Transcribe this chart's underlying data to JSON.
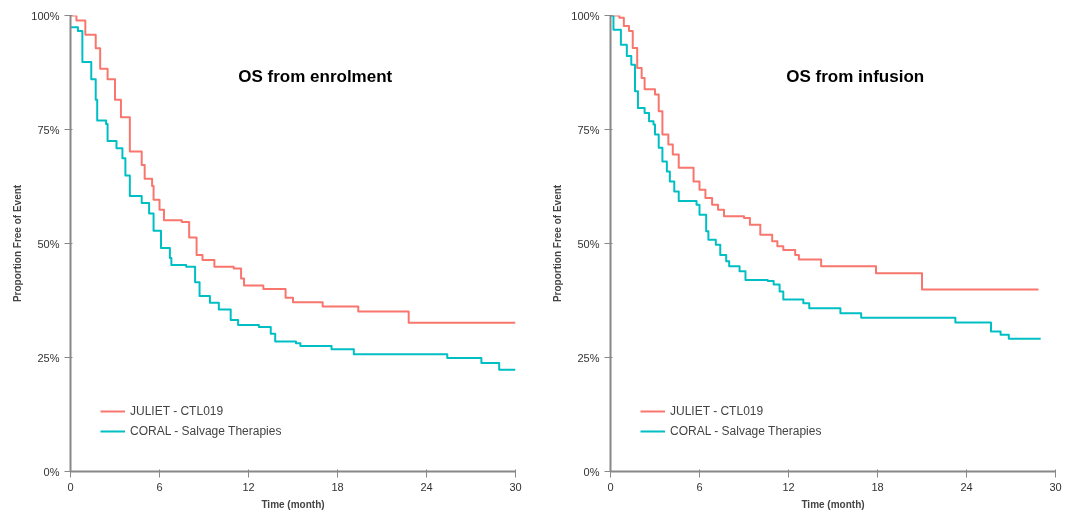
{
  "chart_data": [
    {
      "type": "step",
      "title": "OS from enrolment",
      "xlabel": "Time (month)",
      "ylabel": "Proportion Free of Event",
      "xlim": [
        0,
        30
      ],
      "xticks": [
        0,
        6,
        12,
        18,
        24,
        30
      ],
      "ylim": [
        0,
        100
      ],
      "yticks": [
        {
          "value": 0,
          "label": "0%"
        },
        {
          "value": 25,
          "label": "25%"
        },
        {
          "value": 50,
          "label": "50%"
        },
        {
          "value": 75,
          "label": "75%"
        },
        {
          "value": 100,
          "label": "100%"
        }
      ],
      "grid": false,
      "legend": "bottom left",
      "series": [
        {
          "name": "JULIET - CTL019",
          "color": "#f8766d",
          "x": [
            0,
            0.4,
            1,
            1.7,
            2,
            2.5,
            3,
            3.4,
            4,
            4.8,
            5,
            5.5,
            5.6,
            6,
            6.3,
            7.5,
            8,
            8.5,
            8.9,
            9.7,
            11,
            11.5,
            11.7,
            13,
            14.5,
            15,
            17,
            19.4,
            22.8,
            30
          ],
          "values": [
            100,
            98.9,
            95.8,
            92.8,
            88.3,
            86,
            81.5,
            77.7,
            70.2,
            67.2,
            64.2,
            62.6,
            59.6,
            57.4,
            55.1,
            54.7,
            51.3,
            47.5,
            46.4,
            44.9,
            44.5,
            42.3,
            40.8,
            40,
            38.1,
            37.1,
            36.2,
            35.1,
            32.6,
            32.6
          ]
        },
        {
          "name": "CORAL - Salvage Therapies",
          "color": "#00bfc4",
          "x": [
            0,
            0.5,
            0.8,
            1.4,
            1.7,
            1.8,
            2.4,
            2.5,
            3.1,
            3.5,
            3.7,
            4,
            4.8,
            5.3,
            5.6,
            6.1,
            6.7,
            6.8,
            7.8,
            8.4,
            8.7,
            9.4,
            10,
            10.8,
            11.3,
            12.7,
            13.5,
            13.8,
            15.2,
            15.5,
            17.6,
            19.1,
            25.4,
            27.7,
            28.9,
            30
          ],
          "values": [
            97.4,
            96.6,
            89.8,
            86,
            81.5,
            77,
            76.2,
            72.5,
            70.9,
            68.7,
            64.9,
            60.4,
            58.9,
            56.6,
            52.8,
            49,
            46.8,
            45.3,
            44.9,
            41.5,
            38.5,
            37,
            35.5,
            33.2,
            32.1,
            31.7,
            30.2,
            28.5,
            28.1,
            27.5,
            26.8,
            25.7,
            24.9,
            23.8,
            22.3,
            22.3
          ]
        }
      ]
    },
    {
      "type": "step",
      "title": "OS from infusion",
      "xlabel": "Time (month)",
      "ylabel": "Proportion Free of Event",
      "xlim": [
        0,
        30
      ],
      "xticks": [
        0,
        6,
        12,
        18,
        24,
        30
      ],
      "ylim": [
        0,
        100
      ],
      "yticks": [
        {
          "value": 0,
          "label": "0%"
        },
        {
          "value": 25,
          "label": "25%"
        },
        {
          "value": 50,
          "label": "50%"
        },
        {
          "value": 75,
          "label": "75%"
        },
        {
          "value": 100,
          "label": "100%"
        }
      ],
      "grid": false,
      "legend": "bottom left",
      "series": [
        {
          "name": "JULIET - CTL019",
          "color": "#f8766d",
          "x": [
            0,
            0.6,
            0.9,
            1.25,
            1.5,
            1.8,
            2.1,
            2.3,
            3,
            3.25,
            3.5,
            3.9,
            4.2,
            4.6,
            5.6,
            6,
            6.4,
            6.85,
            7.25,
            7.65,
            9,
            9.4,
            10.1,
            10.9,
            11.25,
            11.65,
            12.45,
            12.7,
            14.2,
            17.9,
            21,
            28.85
          ],
          "values": [
            100,
            99.5,
            97.7,
            96.6,
            92.9,
            88.5,
            86.3,
            83.8,
            82.7,
            79,
            73.9,
            71.7,
            69.5,
            66.6,
            63.6,
            61.8,
            60,
            58.5,
            57.4,
            56,
            55.6,
            54.1,
            51.9,
            50.5,
            49.4,
            48.6,
            47.5,
            46.5,
            45,
            43.5,
            39.9,
            39.9
          ]
        },
        {
          "name": "CORAL - Salvage Therapies",
          "color": "#00bfc4",
          "x": [
            0,
            0.2,
            0.7,
            1.1,
            1.4,
            1.65,
            1.85,
            2.3,
            2.6,
            2.9,
            3,
            3.25,
            3.5,
            3.8,
            4,
            4.3,
            4.6,
            5.8,
            6,
            6.45,
            6.6,
            7.1,
            7.4,
            7.8,
            8,
            8.7,
            9.1,
            10.6,
            11,
            11.4,
            11.65,
            13,
            13.4,
            15.5,
            16.9,
            23.25,
            25.65,
            26.3,
            26.85,
            29
          ],
          "values": [
            100,
            96.9,
            93.6,
            91.1,
            89.2,
            83.4,
            79.7,
            78.6,
            76.8,
            76.1,
            73.9,
            71,
            68,
            65.8,
            63.6,
            61.4,
            59.3,
            58.5,
            56.3,
            52.7,
            50.8,
            49.7,
            47.5,
            46.1,
            45,
            43.9,
            42,
            41.8,
            41,
            39.5,
            37.7,
            36.9,
            35.8,
            34.7,
            33.7,
            32.7,
            30.7,
            30,
            29.1,
            29.1
          ]
        }
      ]
    }
  ]
}
